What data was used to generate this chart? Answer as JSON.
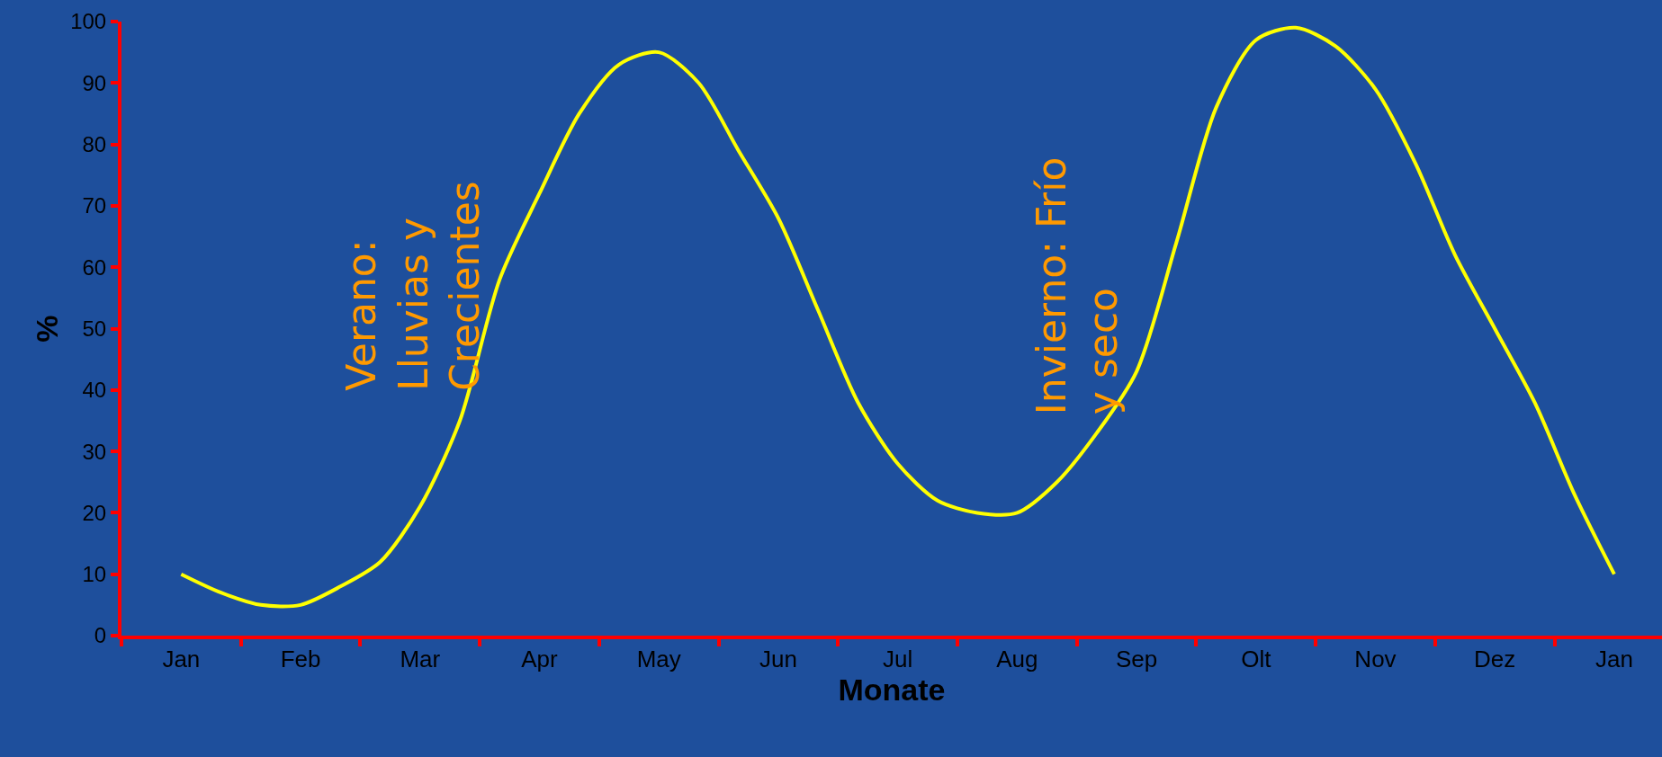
{
  "chart_data": {
    "type": "line",
    "xlabel": "Monate",
    "ylabel": "%",
    "categories": [
      "Jan",
      null,
      null,
      "Feb",
      null,
      null,
      "Mar",
      null,
      null,
      "Apr",
      null,
      null,
      "May",
      null,
      null,
      "Jun",
      null,
      null,
      "Jul",
      null,
      null,
      "Aug",
      null,
      null,
      "Sep",
      null,
      null,
      "Olt",
      null,
      null,
      "Nov",
      null,
      null,
      "Dez",
      null,
      null,
      "Jan"
    ],
    "series": [
      {
        "color": "#ffff00",
        "values": [
          10,
          7,
          5,
          5,
          8,
          12,
          21,
          35,
          58,
          72,
          85,
          93,
          95,
          90,
          79,
          68,
          53,
          38,
          28,
          22,
          20,
          20,
          25,
          33,
          43,
          64,
          86,
          97,
          99,
          96,
          89,
          77,
          62,
          50,
          38,
          23,
          10
        ]
      }
    ],
    "ylim": [
      0,
      100
    ],
    "yticks": [
      0,
      10,
      20,
      30,
      40,
      50,
      60,
      70,
      80,
      90,
      100
    ],
    "grid": false,
    "marker": "none",
    "line_style": "solid",
    "annotations": [
      "Verano:\nLluvias y\nCrecientes",
      "Invierno: Frío\ny seco"
    ]
  }
}
